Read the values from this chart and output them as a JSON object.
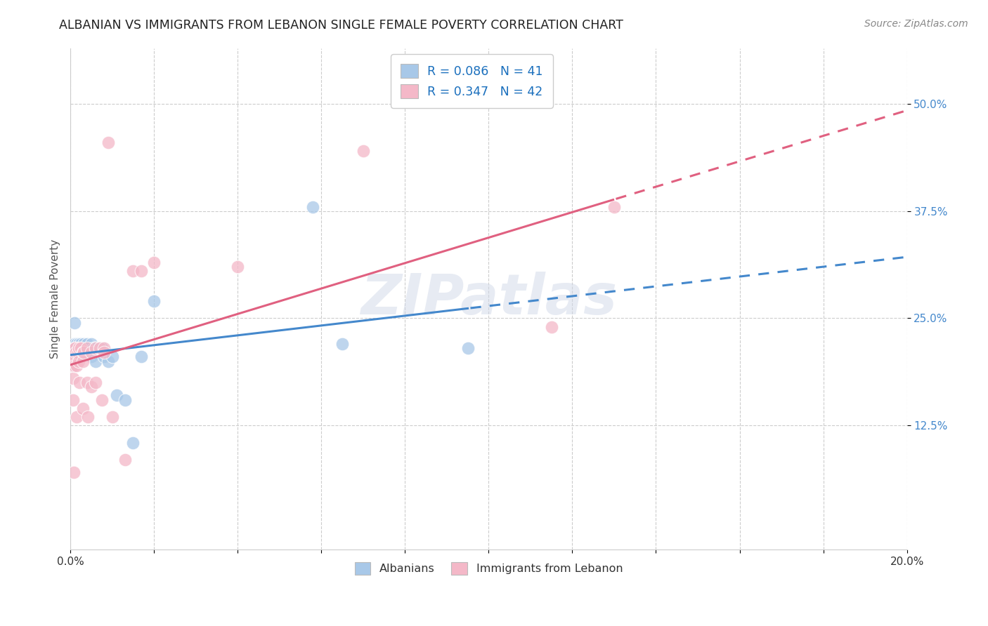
{
  "title": "ALBANIAN VS IMMIGRANTS FROM LEBANON SINGLE FEMALE POVERTY CORRELATION CHART",
  "source": "Source: ZipAtlas.com",
  "ylabel": "Single Female Poverty",
  "legend_blue_label": "R = 0.086   N = 41",
  "legend_pink_label": "R = 0.347   N = 42",
  "legend_bottom_blue": "Albanians",
  "legend_bottom_pink": "Immigrants from Lebanon",
  "watermark": "ZIPatlas",
  "blue_color": "#a8c8e8",
  "pink_color": "#f4b8c8",
  "blue_line_color": "#4488cc",
  "pink_line_color": "#e06080",
  "albanians_x": [
    0.0004,
    0.0005,
    0.0006,
    0.0008,
    0.001,
    0.001,
    0.001,
    0.0012,
    0.0015,
    0.0015,
    0.0018,
    0.002,
    0.002,
    0.0022,
    0.0025,
    0.003,
    0.003,
    0.003,
    0.0032,
    0.0035,
    0.004,
    0.004,
    0.0042,
    0.005,
    0.005,
    0.0055,
    0.006,
    0.006,
    0.007,
    0.0075,
    0.008,
    0.009,
    0.01,
    0.011,
    0.013,
    0.015,
    0.017,
    0.02,
    0.058,
    0.065,
    0.095
  ],
  "albanians_y": [
    0.21,
    0.205,
    0.195,
    0.215,
    0.245,
    0.22,
    0.215,
    0.21,
    0.22,
    0.205,
    0.21,
    0.22,
    0.205,
    0.215,
    0.22,
    0.215,
    0.215,
    0.21,
    0.22,
    0.215,
    0.22,
    0.21,
    0.21,
    0.22,
    0.205,
    0.215,
    0.215,
    0.2,
    0.215,
    0.215,
    0.205,
    0.2,
    0.205,
    0.16,
    0.155,
    0.105,
    0.205,
    0.27,
    0.38,
    0.22,
    0.215
  ],
  "lebanon_x": [
    0.0004,
    0.0005,
    0.0006,
    0.0007,
    0.0008,
    0.001,
    0.001,
    0.001,
    0.0012,
    0.0013,
    0.0015,
    0.0015,
    0.0018,
    0.002,
    0.002,
    0.0022,
    0.0025,
    0.003,
    0.003,
    0.003,
    0.0032,
    0.004,
    0.004,
    0.0042,
    0.005,
    0.005,
    0.006,
    0.006,
    0.007,
    0.0075,
    0.008,
    0.008,
    0.009,
    0.01,
    0.013,
    0.015,
    0.017,
    0.02,
    0.04,
    0.07,
    0.115,
    0.13
  ],
  "lebanon_y": [
    0.2,
    0.195,
    0.18,
    0.155,
    0.07,
    0.215,
    0.205,
    0.195,
    0.215,
    0.21,
    0.195,
    0.135,
    0.21,
    0.215,
    0.2,
    0.175,
    0.215,
    0.21,
    0.2,
    0.145,
    0.21,
    0.215,
    0.175,
    0.135,
    0.21,
    0.17,
    0.215,
    0.175,
    0.215,
    0.155,
    0.215,
    0.21,
    0.455,
    0.135,
    0.085,
    0.305,
    0.305,
    0.315,
    0.31,
    0.445,
    0.24,
    0.38
  ],
  "xlim": [
    0.0,
    0.2
  ],
  "ylim": [
    -0.02,
    0.565
  ],
  "ytick_vals": [
    0.125,
    0.25,
    0.375,
    0.5
  ],
  "ytick_labels": [
    "12.5%",
    "25.0%",
    "37.5%",
    "50.0%"
  ],
  "xtick_vals": [
    0.0,
    0.02,
    0.04,
    0.06,
    0.08,
    0.1,
    0.12,
    0.14,
    0.16,
    0.18,
    0.2
  ],
  "xtick_labels": [
    "0.0%",
    "",
    "",
    "",
    "",
    "",
    "",
    "",
    "",
    "",
    "20.0%"
  ]
}
